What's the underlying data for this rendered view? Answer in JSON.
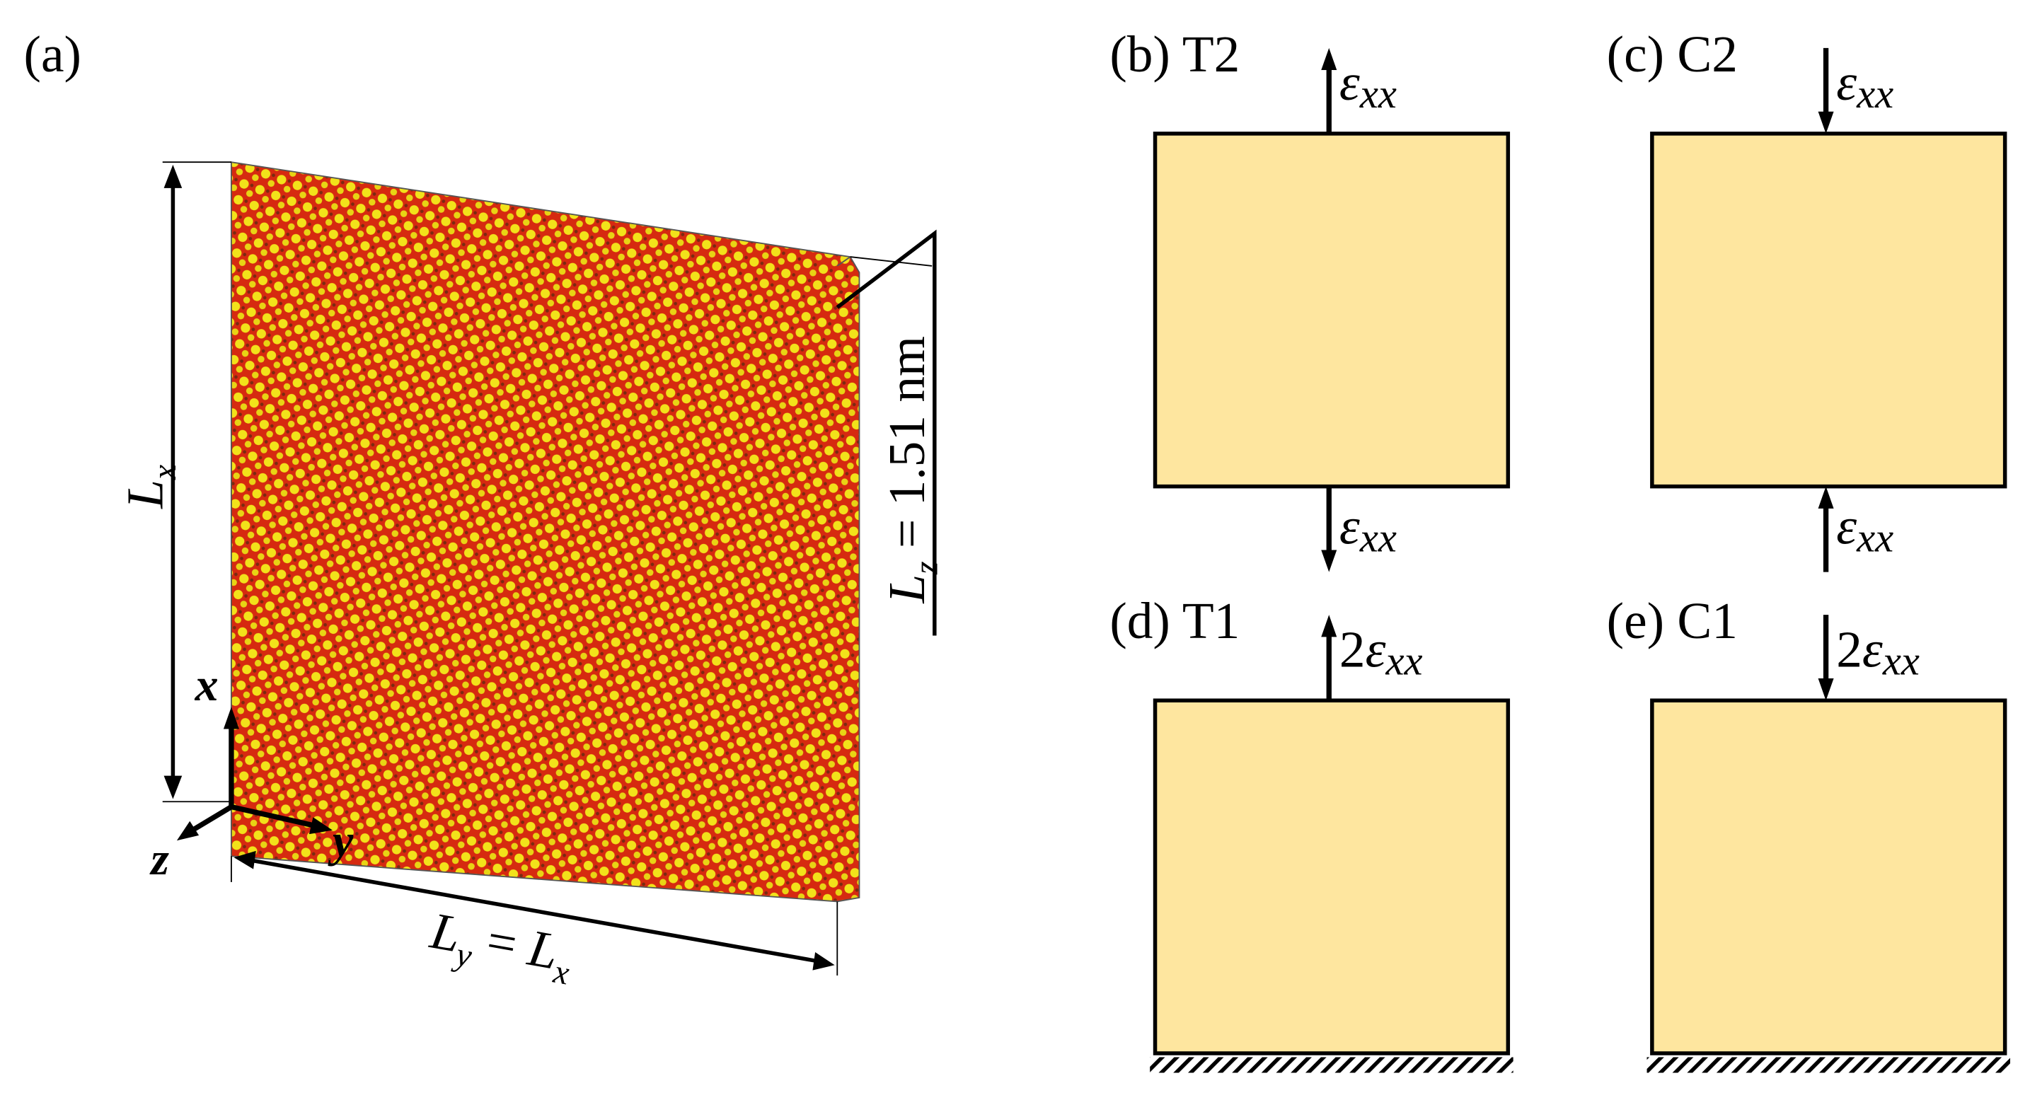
{
  "panel_a": {
    "label": "(a)",
    "lx": [
      {
        "text": "L"
      },
      {
        "text": "x",
        "sub": true
      }
    ],
    "lz": [
      {
        "text": "L"
      },
      {
        "text": "z",
        "sub": true
      },
      {
        "text": " = 1.51 nm"
      }
    ],
    "ly": [
      {
        "text": "L"
      },
      {
        "text": "y",
        "sub": true
      },
      {
        "text": " = "
      },
      {
        "text": "L"
      },
      {
        "text": "x",
        "sub": true
      }
    ],
    "axes": {
      "x": "x",
      "y": "y",
      "z": "z"
    }
  },
  "panels": [
    {
      "label": "(b) T2",
      "top_load": {
        "symbol": "ε",
        "sub": "xx",
        "direction": "up"
      },
      "bottom_load": {
        "symbol": "ε",
        "sub": "xx",
        "direction": "down"
      }
    },
    {
      "label": "(c) C2",
      "top_load": {
        "symbol": "ε",
        "sub": "xx",
        "direction": "down"
      },
      "bottom_load": {
        "symbol": "ε",
        "sub": "xx",
        "direction": "up"
      }
    },
    {
      "label": "(d) T1",
      "top_load": {
        "coef": "2",
        "symbol": "ε",
        "sub": "xx",
        "direction": "up"
      },
      "fixed": true
    },
    {
      "label": "(e) C1",
      "top_load": {
        "coef": "2",
        "symbol": "ε",
        "sub": "xx",
        "direction": "down"
      },
      "fixed": true
    }
  ]
}
